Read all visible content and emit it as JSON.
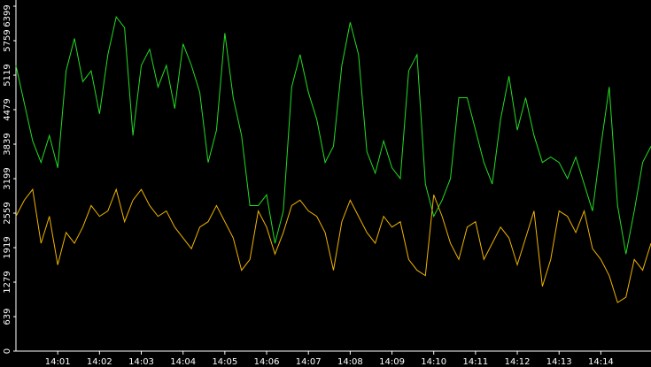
{
  "chart_data": {
    "type": "line",
    "x": [
      0,
      0.2,
      0.4,
      0.6,
      0.8,
      1,
      1.2,
      1.4,
      1.6,
      1.8,
      2,
      2.2,
      2.4,
      2.6,
      2.8,
      3,
      3.2,
      3.4,
      3.6,
      3.8,
      4,
      4.2,
      4.4,
      4.6,
      4.8,
      5,
      5.2,
      5.4,
      5.6,
      5.8,
      6,
      6.2,
      6.4,
      6.6,
      6.8,
      7,
      7.2,
      7.4,
      7.6,
      7.8,
      8,
      8.2,
      8.4,
      8.6,
      8.8,
      9,
      9.2,
      9.4,
      9.6,
      9.8,
      10,
      10.2,
      10.4,
      10.6,
      10.8,
      11,
      11.2,
      11.4,
      11.6,
      11.8,
      12,
      12.2,
      12.4,
      12.6,
      12.8,
      13,
      13.2,
      13.4,
      13.6,
      13.8,
      14,
      14.2,
      14.4,
      14.6,
      14.8,
      15,
      15.2
    ],
    "series": [
      {
        "color": "#22dd22",
        "values": [
          5300,
          4600,
          3900,
          3500,
          4000,
          3400,
          5200,
          5800,
          5000,
          5200,
          4400,
          5500,
          6200,
          6000,
          4000,
          5300,
          5600,
          4900,
          5300,
          4500,
          5700,
          5300,
          4800,
          3500,
          4100,
          5900,
          4700,
          4000,
          2700,
          2700,
          2900,
          2000,
          2600,
          4900,
          5500,
          4800,
          4300,
          3500,
          3800,
          5300,
          6100,
          5500,
          3700,
          3300,
          3900,
          3400,
          3200,
          5200,
          5500,
          3100,
          2500,
          2800,
          3200,
          4700,
          4700,
          4100,
          3500,
          3100,
          4300,
          5100,
          4100,
          4700,
          4000,
          3500,
          3600,
          3500,
          3200,
          3600,
          3100,
          2600,
          3800,
          4900,
          2700,
          1800,
          2600,
          3500,
          3800
        ]
      },
      {
        "color": "#f0b400",
        "values": [
          2500,
          2800,
          3000,
          2000,
          2500,
          1600,
          2200,
          2000,
          2300,
          2700,
          2500,
          2600,
          3000,
          2400,
          2800,
          3000,
          2700,
          2500,
          2600,
          2300,
          2100,
          1900,
          2300,
          2400,
          2700,
          2400,
          2100,
          1500,
          1700,
          2600,
          2300,
          1800,
          2200,
          2700,
          2800,
          2600,
          2500,
          2200,
          1500,
          2400,
          2800,
          2500,
          2200,
          2000,
          2500,
          2300,
          2400,
          1700,
          1500,
          1400,
          2900,
          2500,
          2000,
          1700,
          2300,
          2400,
          1700,
          2000,
          2300,
          2100,
          1600,
          2100,
          2600,
          1200,
          1700,
          2600,
          2500,
          2200,
          2600,
          1900,
          1700,
          1400,
          900,
          1000,
          1700,
          1500,
          2000
        ]
      }
    ],
    "xlim": [
      0,
      15.2
    ],
    "xticks": [
      {
        "value": 1,
        "label": "14:01"
      },
      {
        "value": 2,
        "label": "14:02"
      },
      {
        "value": 3,
        "label": "14:03"
      },
      {
        "value": 4,
        "label": "14:04"
      },
      {
        "value": 5,
        "label": "14:05"
      },
      {
        "value": 6,
        "label": "14:06"
      },
      {
        "value": 7,
        "label": "14:07"
      },
      {
        "value": 8,
        "label": "14:08"
      },
      {
        "value": 9,
        "label": "14:09"
      },
      {
        "value": 10,
        "label": "14:10"
      },
      {
        "value": 11,
        "label": "14:11"
      },
      {
        "value": 12,
        "label": "14:12"
      },
      {
        "value": 13,
        "label": "14:13"
      },
      {
        "value": 14,
        "label": "14:14"
      }
    ],
    "ylim": [
      0,
      6399
    ],
    "yticks": [
      0,
      639,
      1279,
      1919,
      2559,
      3199,
      3839,
      4479,
      5119,
      5759,
      6399
    ]
  }
}
